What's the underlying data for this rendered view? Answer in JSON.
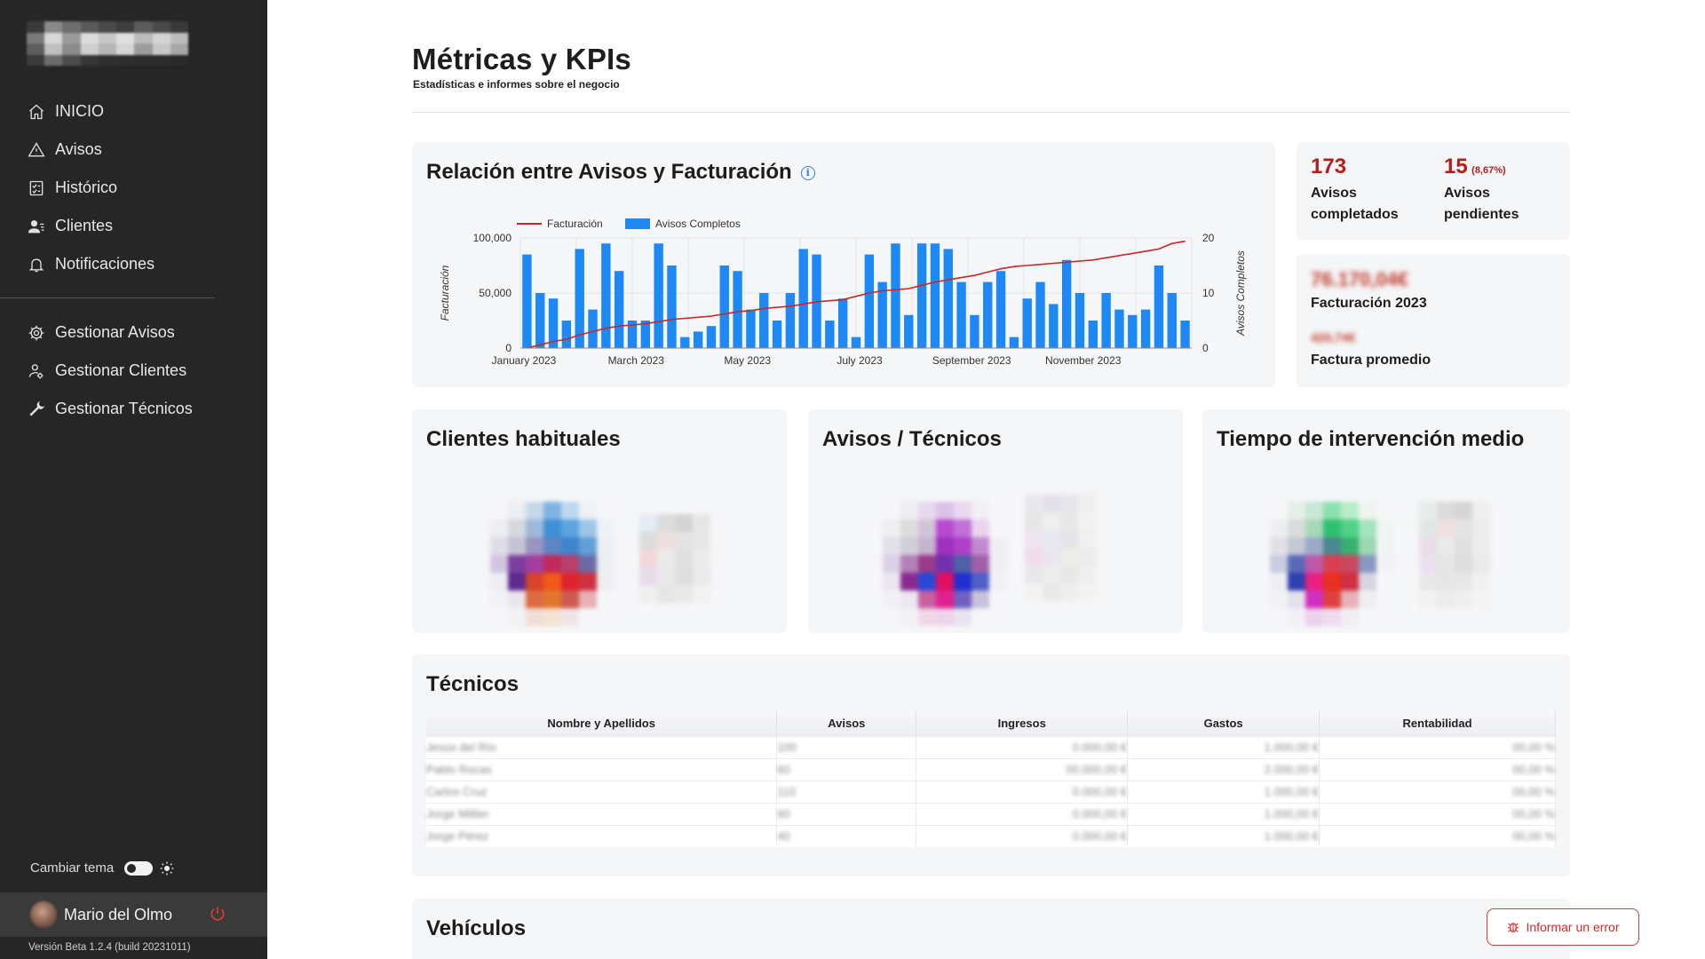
{
  "sidebar": {
    "logo_alt": "logo",
    "items": [
      {
        "label": "INICIO",
        "icon": "home-icon"
      },
      {
        "label": "Avisos",
        "icon": "warning-icon"
      },
      {
        "label": "Histórico",
        "icon": "checklist-icon"
      },
      {
        "label": "Clientes",
        "icon": "users-icon"
      },
      {
        "label": "Notificaciones",
        "icon": "bell-icon"
      }
    ],
    "admin_items": [
      {
        "label": "Gestionar Avisos",
        "icon": "gear-icon"
      },
      {
        "label": "Gestionar Clientes",
        "icon": "user-gear-icon"
      },
      {
        "label": "Gestionar Técnicos",
        "icon": "wrench-icon"
      }
    ],
    "theme_label": "Cambiar tema",
    "user_name": "Mario del Olmo",
    "version": "Versión Beta 1.2.4 (build 20231011)"
  },
  "header": {
    "title": "Métricas y KPIs",
    "subtitle": "Estadísticas e informes sobre el negocio"
  },
  "chart_card": {
    "title": "Relación entre Avisos y Facturación"
  },
  "chart_data": {
    "type": "bar+line",
    "title": "Relación entre Avisos y Facturación",
    "legend": [
      "Facturación",
      "Avisos Completos"
    ],
    "legend_position": "top",
    "ylabel_left": "Facturación",
    "ylabel_right": "Avisos Completos",
    "yticks_left": [
      "0",
      "50,000",
      "100,000"
    ],
    "yticks_right": [
      "0",
      "10",
      "20"
    ],
    "ylim_left": [
      0,
      100000
    ],
    "ylim_right": [
      0,
      20
    ],
    "xticks": [
      "January 2023",
      "March 2023",
      "May 2023",
      "July 2023",
      "September 2023",
      "November 2023"
    ],
    "bar_color": "#1e88f5",
    "line_color": "#c62828",
    "series": [
      {
        "name": "Avisos Completos",
        "values": [
          17,
          10,
          9,
          5,
          18,
          7,
          19,
          14,
          5,
          5,
          19,
          15,
          2,
          3,
          4,
          15,
          14,
          7,
          10,
          5,
          10,
          18,
          17,
          5,
          9,
          2,
          17,
          12,
          19,
          6,
          19,
          19,
          18,
          12,
          6,
          12,
          14,
          2,
          9,
          12,
          8,
          16,
          10,
          5,
          10,
          7,
          6,
          7,
          15,
          10,
          5
        ]
      },
      {
        "name": "Facturación",
        "values": [
          0,
          3000,
          6000,
          8000,
          12000,
          15000,
          18000,
          20000,
          21000,
          22000,
          24000,
          26000,
          27000,
          28000,
          29000,
          31000,
          33000,
          34000,
          36000,
          37000,
          38000,
          40000,
          42000,
          43000,
          44000,
          47000,
          50000,
          52000,
          53000,
          54000,
          57000,
          60000,
          62000,
          64000,
          66000,
          69000,
          72000,
          74000,
          75000,
          76000,
          77000,
          78000,
          79000,
          80000,
          82000,
          84000,
          86000,
          88000,
          90000,
          95000,
          97000
        ]
      }
    ]
  },
  "kpis": {
    "completed_value": "173",
    "completed_label": "Avisos completados",
    "pending_value": "15",
    "pending_pct": "(8,67%)",
    "pending_label": "Avisos pendientes",
    "billing_label": "Facturación 2023",
    "avg_label": "Factura promedio"
  },
  "cards": {
    "clients_title": "Clientes habituales",
    "tech_title": "Avisos / Técnicos",
    "time_title": "Tiempo de intervención medio"
  },
  "technicians": {
    "title": "Técnicos",
    "columns": [
      "Nombre y Apellidos",
      "Avisos",
      "Ingresos",
      "Gastos",
      "Rentabilidad"
    ]
  },
  "vehicles": {
    "title": "Vehículos"
  },
  "report_button": {
    "label": "Informar un error",
    "icon": "bug-icon"
  }
}
